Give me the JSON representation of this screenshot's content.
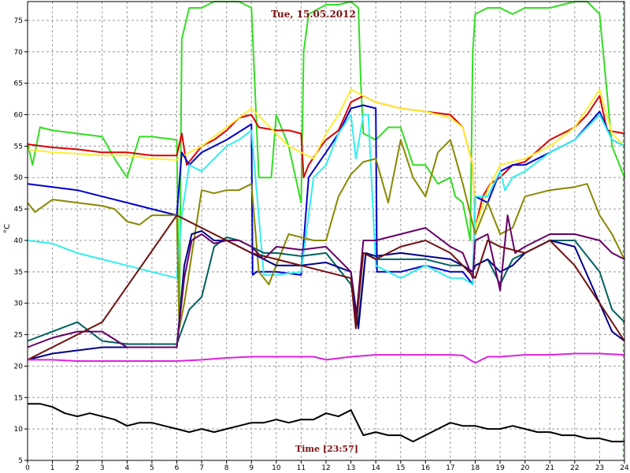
{
  "chart_data": {
    "type": "line",
    "title": "Tue, 15.05.2012",
    "xlabel": "Time [23:57]",
    "ylabel": "°C",
    "xlim": [
      0,
      24
    ],
    "ylim": [
      5,
      78
    ],
    "x_ticks": [
      0,
      1,
      2,
      3,
      4,
      5,
      6,
      7,
      8,
      9,
      10,
      11,
      12,
      13,
      14,
      15,
      16,
      17,
      18,
      19,
      20,
      21,
      22,
      23,
      24
    ],
    "y_ticks": [
      5,
      10,
      15,
      20,
      25,
      30,
      35,
      40,
      45,
      50,
      55,
      60,
      65,
      70,
      75
    ],
    "grid": true,
    "current_time": 23.95,
    "series": [
      {
        "color": "#33dd22",
        "x": [
          0,
          0.2,
          0.5,
          1,
          2,
          3,
          3.5,
          4,
          4.5,
          5,
          6,
          6.1,
          6.2,
          6.5,
          7,
          7.5,
          8,
          8.5,
          9,
          9.3,
          9.8,
          10,
          10.5,
          11,
          11.1,
          11.3,
          12,
          12.5,
          13,
          13.3,
          13.4,
          13.5,
          14,
          14.5,
          15,
          15.5,
          16,
          16.5,
          17,
          17.2,
          17.5,
          17.8,
          17.9,
          18,
          18.5,
          19,
          19.5,
          20,
          21,
          22,
          22.5,
          23,
          23.5,
          24
        ],
        "y": [
          55.5,
          52,
          58,
          57.5,
          57,
          56.5,
          53,
          50,
          56.5,
          56.5,
          56,
          26,
          72,
          77,
          77,
          78,
          78,
          78,
          77,
          50,
          50,
          60,
          55,
          46,
          70,
          76,
          77.5,
          77.5,
          78,
          77,
          65,
          57,
          56,
          58,
          58,
          52,
          52,
          49,
          50,
          47,
          46,
          40,
          70,
          76,
          77,
          77,
          76,
          77,
          77,
          78,
          78,
          76,
          55,
          50
        ]
      },
      {
        "color": "#dd0000",
        "x": [
          0,
          1,
          2,
          3,
          4,
          5,
          6,
          6.2,
          6.4,
          7,
          7.5,
          8,
          8.5,
          9,
          9.3,
          10,
          10.5,
          11,
          11.1,
          11.3,
          11.8,
          12,
          12.5,
          13,
          13.5,
          14,
          15,
          16,
          17,
          17.5,
          17.9,
          18,
          18.3,
          18.6,
          19,
          19.5,
          20,
          21,
          22,
          22.5,
          23,
          23.3,
          24
        ],
        "y": [
          55.3,
          54.8,
          54.5,
          54,
          54,
          53.5,
          53.5,
          57,
          52,
          55,
          56,
          57.5,
          59.5,
          60,
          58,
          57.5,
          57.5,
          57,
          50,
          52,
          55,
          56,
          57.5,
          62,
          63,
          62,
          61,
          60.5,
          60,
          58,
          52,
          42,
          47,
          49,
          50,
          52,
          52.5,
          56,
          58,
          60,
          63,
          57.5,
          57
        ]
      },
      {
        "color": "#ffee33",
        "x": [
          0,
          1,
          2,
          3,
          4,
          5,
          6,
          6.5,
          7,
          8,
          9,
          9.5,
          10,
          10.5,
          11,
          11.5,
          12,
          12.5,
          13,
          13.5,
          14,
          15,
          16,
          17,
          17.5,
          17.9,
          18,
          18.5,
          19,
          20,
          21,
          22,
          22.5,
          23,
          23.5,
          24
        ],
        "y": [
          54.5,
          54,
          53.8,
          53.5,
          53.5,
          53,
          52.8,
          54,
          55,
          58,
          61,
          59,
          57,
          55,
          54,
          53,
          57,
          60,
          64,
          63,
          62,
          61,
          60.5,
          59.5,
          58,
          52,
          42,
          48,
          52,
          53,
          55,
          58,
          61,
          64,
          57,
          55
        ]
      },
      {
        "color": "#0000cc",
        "x": [
          0,
          1,
          2,
          3,
          4,
          5,
          6,
          6.2,
          6.5,
          7,
          8,
          9,
          9.05,
          9.2,
          10,
          11,
          11.3,
          12,
          12.5,
          13,
          13.5,
          14,
          14.05,
          14.3,
          15,
          16,
          17,
          17.5,
          17.9,
          18,
          18.5,
          19,
          19.5,
          20,
          21,
          22,
          23,
          23.5,
          24
        ],
        "y": [
          49,
          48.5,
          48,
          47,
          46,
          45,
          44,
          54,
          52,
          54,
          56,
          58.5,
          34.5,
          35,
          35,
          34.5,
          50,
          54,
          57,
          61,
          61.5,
          61,
          35,
          35,
          35,
          36,
          35,
          35,
          33,
          47,
          46,
          51,
          52,
          52,
          54,
          56,
          60.5,
          56,
          55
        ]
      },
      {
        "color": "#33eeee",
        "x": [
          0,
          1,
          2,
          3,
          4,
          5,
          6,
          6.2,
          6.5,
          7,
          7.5,
          8,
          8.5,
          9,
          9.5,
          10,
          11,
          11.5,
          12,
          12.5,
          13,
          13.2,
          13.5,
          13.7,
          14,
          14.5,
          15,
          16,
          17,
          17.5,
          17.9,
          18,
          18.5,
          19,
          19.2,
          19.5,
          20,
          21,
          22,
          23,
          23.5,
          24
        ],
        "y": [
          40,
          39.5,
          38,
          37,
          36,
          35,
          34,
          44,
          52,
          51,
          53,
          55,
          56,
          57.5,
          34.5,
          34.5,
          35,
          50,
          52,
          57,
          60,
          53,
          60,
          60,
          36,
          35,
          34,
          36,
          34,
          34,
          33,
          47,
          47,
          51,
          48,
          50,
          51,
          54,
          56,
          60,
          56,
          55
        ]
      },
      {
        "color": "#888800",
        "x": [
          0,
          0.3,
          1,
          2,
          3,
          3.5,
          4,
          4.5,
          5,
          6,
          6.1,
          6.3,
          7,
          7.5,
          8,
          8.5,
          9,
          9.3,
          9.7,
          10,
          10.5,
          11,
          11.5,
          12,
          12.5,
          13,
          13.5,
          14,
          14.5,
          15,
          15.5,
          16,
          16.5,
          17,
          17.5,
          18,
          18.5,
          19,
          19.5,
          20,
          21,
          22,
          22.5,
          23,
          23.5,
          24
        ],
        "y": [
          46,
          44.5,
          46.5,
          46,
          45.5,
          45,
          43,
          42.5,
          44,
          44,
          26,
          30,
          48,
          47.5,
          48,
          48,
          49,
          35,
          33,
          36,
          41,
          40.5,
          40,
          40,
          47,
          50.5,
          52.5,
          53,
          46,
          56,
          50,
          47,
          54,
          56,
          49,
          41,
          46,
          41,
          42,
          47,
          48,
          48.5,
          49,
          44,
          41,
          37
        ]
      },
      {
        "color": "#006060",
        "x": [
          0,
          1,
          2,
          2.5,
          3,
          4,
          5,
          6,
          6.5,
          7,
          7.5,
          8,
          8.5,
          9,
          9.5,
          10,
          11,
          12,
          13,
          13.3,
          13.6,
          14,
          15,
          16,
          17,
          17.5,
          17.9,
          18,
          18.5,
          19,
          19.5,
          20,
          21,
          22,
          23,
          23.5,
          24
        ],
        "y": [
          24,
          25.5,
          27,
          25.5,
          24,
          23.5,
          23.5,
          23.5,
          29,
          31,
          39,
          40.5,
          40,
          39,
          38,
          38,
          37.5,
          38,
          33,
          27,
          38,
          37,
          37,
          37,
          36,
          36,
          35,
          36,
          37,
          33,
          37,
          38,
          40,
          40,
          35,
          29,
          27
        ]
      },
      {
        "color": "#000088",
        "x": [
          0,
          1,
          2,
          3,
          4,
          5,
          6,
          6.3,
          6.6,
          7,
          7.5,
          8,
          8.5,
          9,
          9.5,
          10,
          11,
          12,
          13,
          13.3,
          13.6,
          14,
          15,
          16,
          17,
          17.5,
          17.9,
          18,
          18.5,
          19,
          19.5,
          20,
          21,
          22,
          23,
          23.5,
          24
        ],
        "y": [
          21,
          22,
          22.5,
          23,
          23,
          23,
          23,
          36,
          41,
          41.5,
          40,
          40,
          39,
          38,
          37,
          36,
          36,
          36.5,
          35,
          26,
          38,
          37.5,
          38,
          37.5,
          37,
          36,
          35,
          36,
          37,
          35,
          36,
          38,
          40,
          39,
          30,
          25.5,
          24
        ]
      },
      {
        "color": "#660066",
        "x": [
          0,
          1,
          2,
          3,
          4,
          5,
          6,
          6.3,
          6.6,
          7,
          7.5,
          8,
          8.5,
          9,
          9.5,
          10,
          11,
          12,
          13,
          13.2,
          13.5,
          14,
          15,
          16,
          17,
          17.5,
          17.9,
          18,
          18.5,
          19,
          19.3,
          19.6,
          20,
          21,
          22,
          23,
          23.5,
          24
        ],
        "y": [
          23,
          24.5,
          25.5,
          25.5,
          23,
          23,
          23,
          34,
          40,
          41,
          39.5,
          40,
          40,
          39,
          37,
          39,
          38.5,
          39,
          35,
          27,
          40,
          40,
          41,
          42,
          39,
          38,
          34,
          40,
          41,
          32,
          44,
          38,
          39,
          41,
          41,
          40,
          38,
          37
        ]
      },
      {
        "color": "#701010",
        "x": [
          0,
          3,
          6,
          9,
          11,
          13,
          13.2,
          13.5,
          14,
          15,
          16,
          17,
          18,
          18.5,
          19,
          20,
          21,
          22,
          23,
          24
        ],
        "y": [
          21,
          27,
          44,
          38,
          36,
          34,
          26,
          38,
          37,
          39,
          40,
          38,
          34,
          40,
          39,
          38,
          40,
          36,
          30,
          24
        ]
      },
      {
        "color": "#dd22dd",
        "x": [
          0,
          1,
          2,
          3,
          4,
          5,
          6,
          7,
          8,
          9,
          10,
          11,
          11.5,
          12,
          13,
          14,
          15,
          16,
          17,
          17.5,
          18,
          18.5,
          19,
          20,
          21,
          22,
          23,
          24
        ],
        "y": [
          21,
          21,
          20.8,
          20.8,
          20.8,
          20.8,
          20.8,
          21,
          21.3,
          21.5,
          21.5,
          21.5,
          21.5,
          21,
          21.5,
          21.8,
          21.8,
          21.8,
          21.8,
          21.7,
          20.5,
          21.5,
          21.5,
          21.8,
          21.8,
          22,
          22,
          21.8
        ]
      },
      {
        "color": "#000000",
        "x": [
          0,
          0.5,
          1,
          1.5,
          2,
          2.5,
          3,
          3.5,
          4,
          4.5,
          5,
          5.5,
          6,
          6.5,
          7,
          7.5,
          8,
          8.5,
          9,
          9.5,
          10,
          10.5,
          11,
          11.5,
          12,
          12.5,
          13,
          13.5,
          14,
          14.5,
          15,
          15.5,
          16,
          16.5,
          17,
          17.5,
          18,
          18.5,
          19,
          19.5,
          20,
          20.5,
          21,
          21.5,
          22,
          22.5,
          23,
          23.5,
          24
        ],
        "y": [
          14,
          14,
          13.5,
          12.5,
          12,
          12.5,
          12,
          11.5,
          10.5,
          11,
          11,
          10.5,
          10,
          9.5,
          10,
          9.5,
          10,
          10.5,
          11,
          11,
          11.5,
          11,
          11.5,
          11.5,
          12.5,
          12,
          13,
          9,
          9.5,
          9,
          9,
          8,
          9,
          10,
          11,
          10.5,
          10.5,
          10,
          10,
          10.5,
          10,
          9.5,
          9.5,
          9,
          9,
          8.5,
          8.5,
          8,
          8
        ]
      }
    ]
  }
}
